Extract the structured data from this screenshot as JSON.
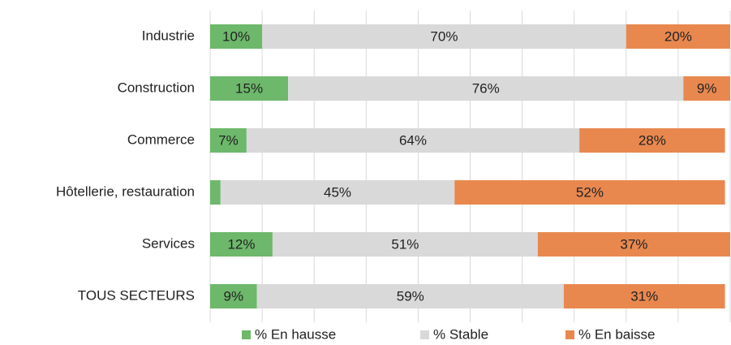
{
  "chart_data": {
    "type": "stacked-bar-horizontal",
    "categories": [
      "Industrie",
      "Construction",
      "Commerce",
      "Hôtellerie, restauration",
      "Services",
      "TOUS SECTEURS"
    ],
    "series": [
      {
        "name": "% En hausse",
        "color": "#6db86b",
        "values": [
          10,
          15,
          7,
          2,
          12,
          9
        ],
        "value_labels": [
          "10%",
          "15%",
          "7%",
          "2%",
          "12%",
          "9%"
        ]
      },
      {
        "name": "% Stable",
        "color": "#d9d9d9",
        "values": [
          70,
          76,
          64,
          45,
          51,
          59
        ],
        "value_labels": [
          "70%",
          "76%",
          "64%",
          "45%",
          "51%",
          "59%"
        ]
      },
      {
        "name": "% En baisse",
        "color": "#e8884f",
        "values": [
          20,
          9,
          28,
          52,
          37,
          31
        ],
        "value_labels": [
          "20%",
          "9%",
          "28%",
          "52%",
          "37%",
          "31%"
        ]
      }
    ],
    "xlim": [
      0,
      100
    ],
    "xticks": [
      0,
      10,
      20,
      30,
      40,
      50,
      60,
      70,
      80,
      90,
      100
    ],
    "grid": true,
    "legend": "bottom"
  }
}
